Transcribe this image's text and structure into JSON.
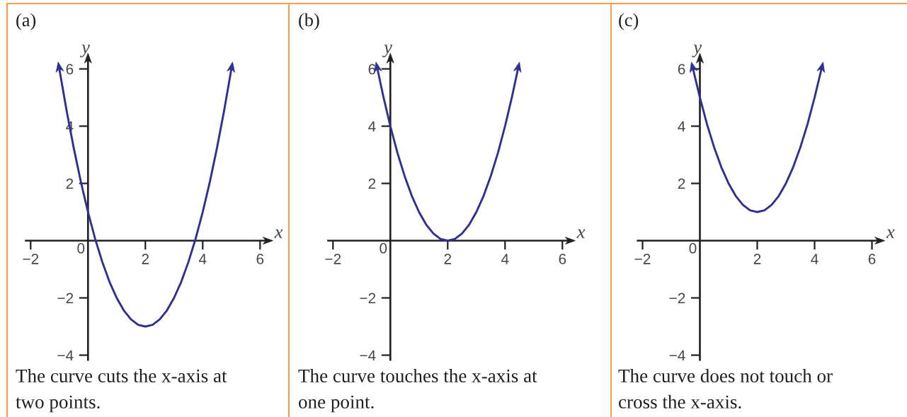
{
  "chart_data": [
    {
      "type": "line",
      "title": "(a)",
      "xlabel": "x",
      "ylabel": "y",
      "x": [
        -1,
        -0.75,
        -0.5,
        -0.25,
        0,
        0.25,
        0.5,
        0.75,
        1,
        1.25,
        1.5,
        1.75,
        2,
        2.25,
        2.5,
        2.75,
        3,
        3.25,
        3.5,
        3.75,
        4,
        4.25,
        4.5,
        4.75,
        5
      ],
      "series": [
        {
          "color": "#2e3192",
          "values": [
            6,
            4.56,
            3.25,
            2.06,
            1,
            0.06,
            -0.75,
            -1.44,
            -2,
            -2.44,
            -2.75,
            -2.94,
            -3,
            -2.94,
            -2.75,
            -2.44,
            -2,
            -1.44,
            -0.75,
            0.06,
            1,
            2.06,
            3.25,
            4.56,
            6
          ]
        }
      ],
      "xlim": [
        -2.2,
        6.35
      ],
      "ylim": [
        -4.2,
        6.45
      ],
      "xticks": [
        -2,
        2,
        4,
        6
      ],
      "yticks": [
        -4,
        -2,
        2,
        4,
        6
      ],
      "annotations": [
        "0",
        "The curve cuts the x-axis at two points."
      ]
    },
    {
      "type": "line",
      "title": "(b)",
      "xlabel": "x",
      "ylabel": "y",
      "x": [
        -0.45,
        -0.25,
        0,
        0.25,
        0.5,
        0.75,
        1,
        1.25,
        1.5,
        1.75,
        2,
        2.25,
        2.5,
        2.75,
        3,
        3.25,
        3.5,
        3.75,
        4,
        4.25,
        4.45
      ],
      "series": [
        {
          "color": "#2e3192",
          "values": [
            6,
            5.06,
            4,
            3.06,
            2.25,
            1.56,
            1,
            0.56,
            0.25,
            0.06,
            0,
            0.06,
            0.25,
            0.56,
            1,
            1.56,
            2.25,
            3.06,
            4,
            5.06,
            6
          ]
        }
      ],
      "xlim": [
        -2.2,
        6.35
      ],
      "ylim": [
        -4.2,
        6.45
      ],
      "xticks": [
        -2,
        2,
        4,
        6
      ],
      "yticks": [
        -4,
        -2,
        2,
        4,
        6
      ],
      "annotations": [
        "0",
        "The curve touches the x-axis at one point."
      ]
    },
    {
      "type": "line",
      "title": "(c)",
      "xlabel": "x",
      "ylabel": "y",
      "x": [
        -0.24,
        0,
        0.25,
        0.5,
        0.75,
        1,
        1.25,
        1.5,
        1.75,
        2,
        2.25,
        2.5,
        2.75,
        3,
        3.25,
        3.5,
        3.75,
        4,
        4.24
      ],
      "series": [
        {
          "color": "#2e3192",
          "values": [
            6,
            5,
            4.06,
            3.25,
            2.56,
            2,
            1.56,
            1.25,
            1.06,
            1,
            1.06,
            1.25,
            1.56,
            2,
            2.56,
            3.25,
            4.06,
            5,
            6
          ]
        }
      ],
      "xlim": [
        -2.2,
        6.35
      ],
      "ylim": [
        -4.2,
        6.45
      ],
      "xticks": [
        -2,
        2,
        4,
        6
      ],
      "yticks": [
        -4,
        -2,
        2,
        4,
        6
      ],
      "annotations": [
        "0",
        "The curve does not touch or cross the x-axis."
      ]
    }
  ]
}
